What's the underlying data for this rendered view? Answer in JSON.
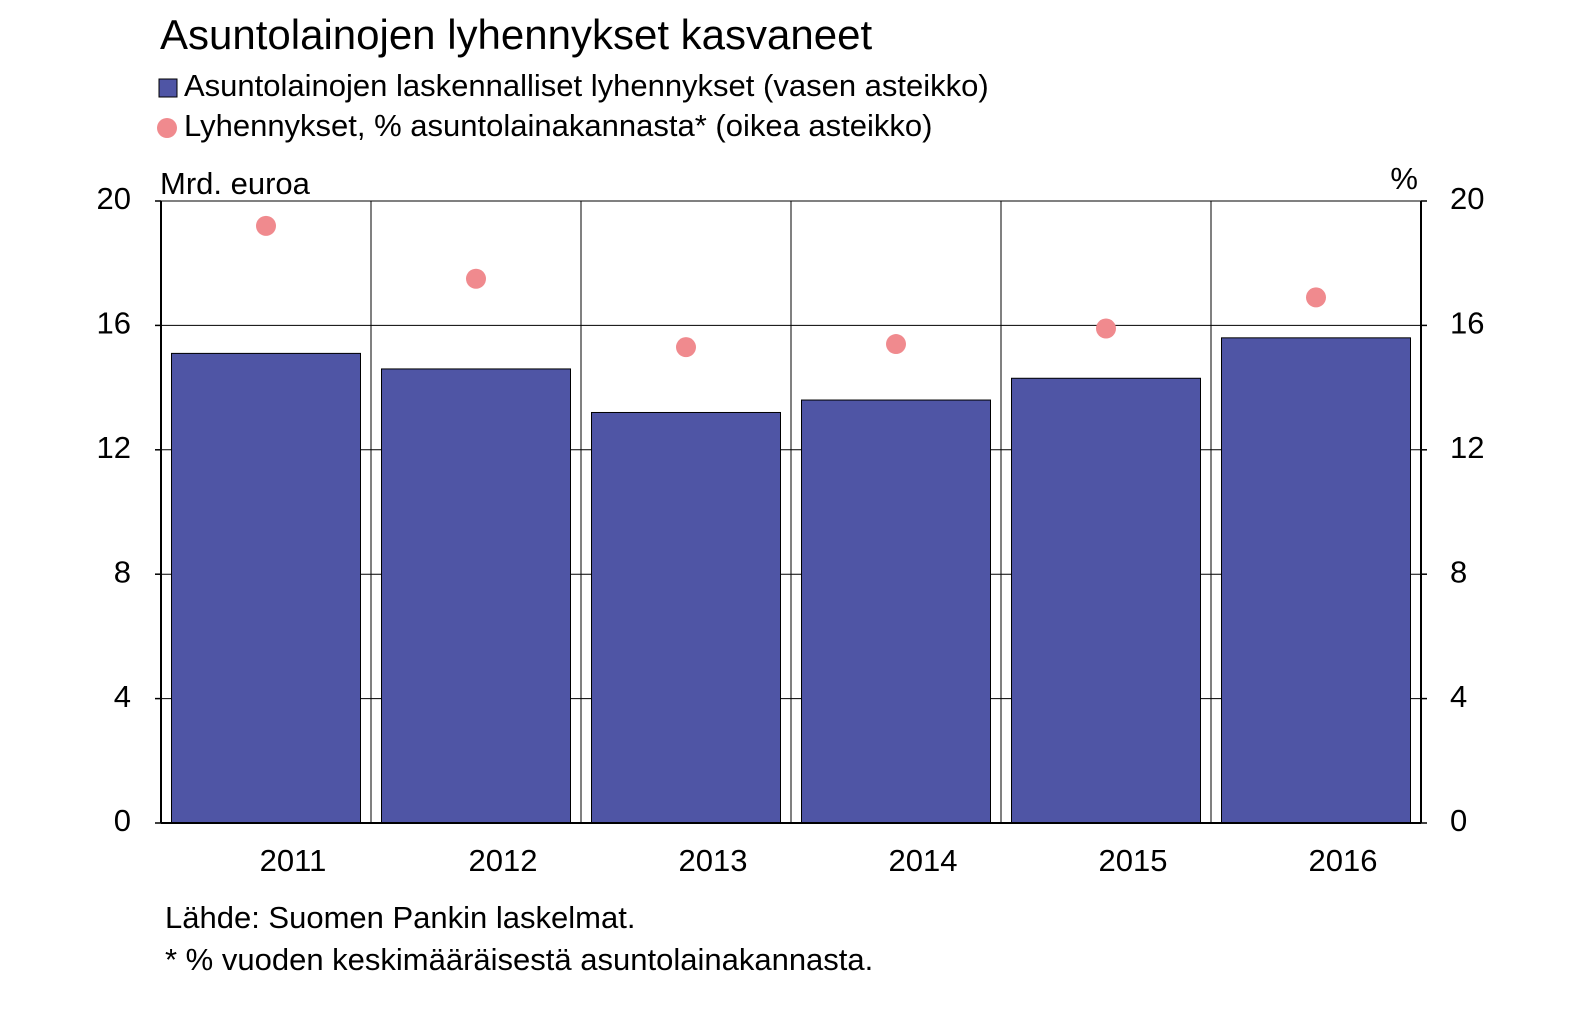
{
  "chart_data": {
    "type": "bar",
    "title": "Asuntolainojen lyhennykset kasvaneet",
    "y_label": "Mrd. euroa",
    "y2_label": "%",
    "categories": [
      "2011",
      "2012",
      "2013",
      "2014",
      "2015",
      "2016"
    ],
    "series": [
      {
        "name": "Asuntolainojen laskennalliset lyhennykset (vasen asteikko)",
        "type": "bar",
        "color": "#4f55a5",
        "values": [
          15.1,
          14.6,
          13.2,
          13.6,
          14.3,
          15.6
        ]
      },
      {
        "name": "Lyhennykset, % asuntolainakannasta* (oikea asteikko)",
        "type": "scatter",
        "color": "#f08a8e",
        "axis": "y2",
        "values": [
          19.2,
          17.5,
          15.3,
          15.4,
          15.9,
          16.9
        ]
      }
    ],
    "ylim": [
      0,
      20
    ],
    "yticks": [
      0,
      4,
      8,
      12,
      16,
      20
    ],
    "y2lim": [
      0,
      20
    ],
    "y2ticks": [
      0,
      4,
      8,
      12,
      16,
      20
    ],
    "grid": true,
    "notes": [
      "Lähde: Suomen Pankin laskelmat.",
      "* % vuoden keskimääräisestä asuntolainakannasta."
    ]
  }
}
